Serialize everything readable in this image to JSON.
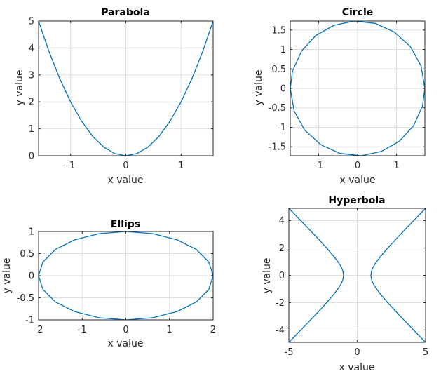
{
  "colors": {
    "series": "#0072bd"
  },
  "chart_data": [
    {
      "type": "line",
      "title": "Parabola",
      "xlabel": "x value",
      "ylabel": "y value",
      "xlim": [
        -1.58,
        1.58
      ],
      "ylim": [
        0,
        5
      ],
      "xticks": [
        -1,
        0,
        1
      ],
      "yticks": [
        0,
        1,
        2,
        3,
        4,
        5
      ],
      "xtick_labels": [
        "-1",
        "0",
        "1"
      ],
      "ytick_labels": [
        "0",
        "1",
        "2",
        "3",
        "4",
        "5"
      ],
      "grid": true,
      "series": [
        {
          "x": [
            -1.58,
            -1.4,
            -1.2,
            -1.0,
            -0.8,
            -0.6,
            -0.4,
            -0.2,
            0.0,
            0.2,
            0.4,
            0.6,
            0.8,
            1.0,
            1.2,
            1.4,
            1.58
          ],
          "y": [
            5.0,
            3.92,
            2.88,
            2.0,
            1.28,
            0.72,
            0.32,
            0.08,
            0.0,
            0.08,
            0.32,
            0.72,
            1.28,
            2.0,
            2.88,
            3.92,
            5.0
          ]
        }
      ]
    },
    {
      "type": "line",
      "title": "Circle",
      "xlabel": "x value",
      "ylabel": "y value",
      "xlim": [
        -1.73,
        1.73
      ],
      "ylim": [
        -1.73,
        1.73
      ],
      "xticks": [
        -1,
        0,
        1
      ],
      "yticks": [
        -1.5,
        -1,
        -0.5,
        0,
        0.5,
        1,
        1.5
      ],
      "xtick_labels": [
        "-1",
        "0",
        "1"
      ],
      "ytick_labels": [
        "-1.5",
        "-1",
        "-0.5",
        "0",
        "0.5",
        "1",
        "1.5"
      ],
      "grid": true,
      "series": [
        {
          "x": [
            1.73,
            1.63,
            1.36,
            0.94,
            0.45,
            -0.09,
            -0.61,
            -1.07,
            -1.44,
            -1.67,
            -1.73,
            -1.63,
            -1.36,
            -0.94,
            -0.45,
            0.09,
            0.61,
            1.07,
            1.44,
            1.67,
            1.73
          ],
          "y": [
            0.0,
            0.58,
            1.07,
            1.45,
            1.67,
            1.73,
            1.62,
            1.36,
            0.96,
            0.45,
            0.0,
            -0.58,
            -1.07,
            -1.45,
            -1.67,
            -1.73,
            -1.62,
            -1.36,
            -0.96,
            -0.45,
            0.0
          ]
        }
      ]
    },
    {
      "type": "line",
      "title": "Ellips",
      "xlabel": "x value",
      "ylabel": "y value",
      "xlim": [
        -2,
        2
      ],
      "ylim": [
        -1,
        1
      ],
      "xticks": [
        -2,
        -1,
        0,
        1,
        2
      ],
      "yticks": [
        -1,
        -0.5,
        0,
        0.5,
        1
      ],
      "xtick_labels": [
        "-2",
        "-1",
        "0",
        "1",
        "2"
      ],
      "ytick_labels": [
        "-1",
        "-0.5",
        "0",
        "0.5",
        "1"
      ],
      "grid": true,
      "series": [
        {
          "x": [
            2.0,
            1.9,
            1.62,
            1.18,
            0.62,
            0.0,
            -0.62,
            -1.18,
            -1.62,
            -1.9,
            -2.0,
            -1.9,
            -1.62,
            -1.18,
            -0.62,
            0.0,
            0.62,
            1.18,
            1.62,
            1.9,
            2.0
          ],
          "y": [
            0.0,
            0.31,
            0.59,
            0.81,
            0.95,
            1.0,
            0.95,
            0.81,
            0.59,
            0.31,
            0.0,
            -0.31,
            -0.59,
            -0.81,
            -0.95,
            -1.0,
            -0.95,
            -0.81,
            -0.59,
            -0.31,
            0.0
          ]
        }
      ]
    },
    {
      "type": "line",
      "title": "Hyperbola",
      "xlabel": "x value",
      "ylabel": "y value",
      "xlim": [
        -5,
        5
      ],
      "ylim": [
        -4.9,
        4.9
      ],
      "xticks": [
        -5,
        0,
        5
      ],
      "yticks": [
        -4,
        -2,
        0,
        2,
        4
      ],
      "xtick_labels": [
        "-5",
        "0",
        "5"
      ],
      "ytick_labels": [
        "-4",
        "-2",
        "0",
        "2",
        "4"
      ],
      "grid": true,
      "series": [
        {
          "x": [
            5.0,
            4.0,
            3.0,
            2.2,
            1.7,
            1.35,
            1.15,
            1.05,
            1.0,
            1.05,
            1.15,
            1.35,
            1.7,
            2.2,
            3.0,
            4.0,
            5.0
          ],
          "y": [
            -4.9,
            -3.87,
            -2.83,
            -1.96,
            -1.37,
            -0.91,
            -0.57,
            -0.32,
            0.0,
            0.32,
            0.57,
            0.91,
            1.37,
            1.96,
            2.83,
            3.87,
            4.9
          ]
        },
        {
          "x": [
            -5.0,
            -4.0,
            -3.0,
            -2.2,
            -1.7,
            -1.35,
            -1.15,
            -1.05,
            -1.0,
            -1.05,
            -1.15,
            -1.35,
            -1.7,
            -2.2,
            -3.0,
            -4.0,
            -5.0
          ],
          "y": [
            -4.9,
            -3.87,
            -2.83,
            -1.96,
            -1.37,
            -0.91,
            -0.57,
            -0.32,
            0.0,
            0.32,
            0.57,
            0.91,
            1.37,
            1.96,
            2.83,
            3.87,
            4.9
          ]
        }
      ]
    }
  ]
}
